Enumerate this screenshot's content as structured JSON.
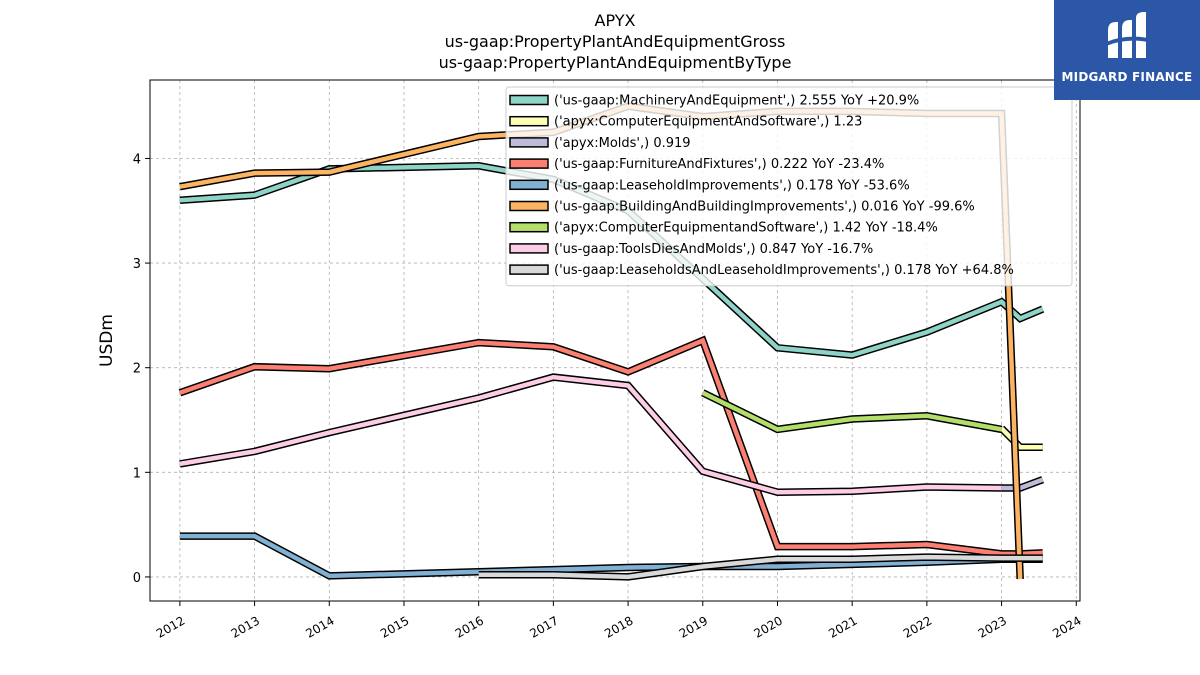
{
  "chart_data": {
    "type": "line",
    "title_lines": [
      "APYX",
      "us-gaap:PropertyPlantAndEquipmentGross",
      "us-gaap:PropertyPlantAndEquipmentByType"
    ],
    "ylabel": "USDm",
    "xlim": [
      2011.6,
      2024.05
    ],
    "ylim": [
      -0.23,
      4.75
    ],
    "x_ticks": [
      2012,
      2013,
      2014,
      2015,
      2016,
      2017,
      2018,
      2019,
      2020,
      2021,
      2022,
      2023,
      2024
    ],
    "y_ticks": [
      0,
      1,
      2,
      3,
      4
    ],
    "grid": true,
    "legend_position": "top-right",
    "series": [
      {
        "name": "('us-gaap:MachineryAndEquipment',) 2.555 YoY +20.9%",
        "color": "#8dd3c7",
        "x": [
          2012,
          2013,
          2014,
          2016,
          2017,
          2018,
          2019,
          2020,
          2021,
          2022,
          2023,
          2023.25,
          2023.55
        ],
        "y": [
          3.6,
          3.65,
          3.9,
          3.93,
          3.8,
          3.5,
          2.85,
          2.19,
          2.12,
          2.34,
          2.63,
          2.47,
          2.56
        ]
      },
      {
        "name": "('apyx:ComputerEquipmentAndSoftware',) 1.23",
        "color": "#ffffb3",
        "x": [
          2023.0,
          2023.25,
          2023.55
        ],
        "y": [
          1.42,
          1.24,
          1.24
        ]
      },
      {
        "name": "('apyx:Molds',) 0.919",
        "color": "#bebada",
        "x": [
          2023.0,
          2023.25,
          2023.55
        ],
        "y": [
          0.85,
          0.85,
          0.93
        ]
      },
      {
        "name": "('us-gaap:FurnitureAndFixtures',) 0.222 YoY -23.4%",
        "color": "#fb8072",
        "x": [
          2012,
          2013,
          2014,
          2016,
          2017,
          2018,
          2019,
          2020,
          2021,
          2022,
          2023,
          2023.25,
          2023.55
        ],
        "y": [
          1.76,
          2.01,
          1.99,
          2.24,
          2.2,
          1.96,
          2.26,
          0.29,
          0.29,
          0.31,
          0.22,
          0.22,
          0.23
        ]
      },
      {
        "name": "('us-gaap:LeaseholdImprovements',) 0.178 YoY -53.6%",
        "color": "#80b1d3",
        "x": [
          2012,
          2013,
          2014,
          2016,
          2017,
          2018,
          2019,
          2020,
          2021,
          2022,
          2023,
          2023.55
        ],
        "y": [
          0.39,
          0.39,
          0.01,
          0.05,
          0.07,
          0.09,
          0.1,
          0.1,
          0.12,
          0.14,
          0.17,
          0.17
        ]
      },
      {
        "name": "('us-gaap:BuildingAndBuildingImprovements',) 0.016 YoY -99.6%",
        "color": "#fdb462",
        "x": [
          2012,
          2013,
          2014,
          2016,
          2017,
          2018,
          2019,
          2020,
          2021,
          2022,
          2023.0,
          2023.25
        ],
        "y": [
          3.73,
          3.86,
          3.87,
          4.21,
          4.25,
          4.5,
          4.4,
          4.45,
          4.45,
          4.43,
          4.43,
          -0.02
        ]
      },
      {
        "name": "('apyx:ComputerEquipmentandSoftware',) 1.42 YoY -18.4%",
        "color": "#b3de69",
        "x": [
          2019,
          2020,
          2021,
          2022,
          2023
        ],
        "y": [
          1.76,
          1.41,
          1.51,
          1.54,
          1.41
        ]
      },
      {
        "name": "('us-gaap:ToolsDiesAndMolds',) 0.847 YoY -16.7%",
        "color": "#fccde5",
        "x": [
          2012,
          2013,
          2014,
          2016,
          2017,
          2018,
          2019,
          2020,
          2021,
          2022,
          2023
        ],
        "y": [
          1.08,
          1.2,
          1.38,
          1.71,
          1.91,
          1.83,
          1.01,
          0.81,
          0.82,
          0.86,
          0.85
        ]
      },
      {
        "name": "('us-gaap:LeaseholdsAndLeaseholdImprovements',) 0.178 YoY +64.8%",
        "color": "#d9d9d9",
        "x": [
          2016,
          2017,
          2018,
          2019,
          2020,
          2021,
          2022,
          2023,
          2023.55
        ],
        "y": [
          0.02,
          0.02,
          0.0,
          0.1,
          0.17,
          0.17,
          0.19,
          0.18,
          0.18
        ]
      }
    ]
  },
  "watermark": {
    "text": "MIDGARD FINANCE",
    "color": "#2b57a6"
  }
}
